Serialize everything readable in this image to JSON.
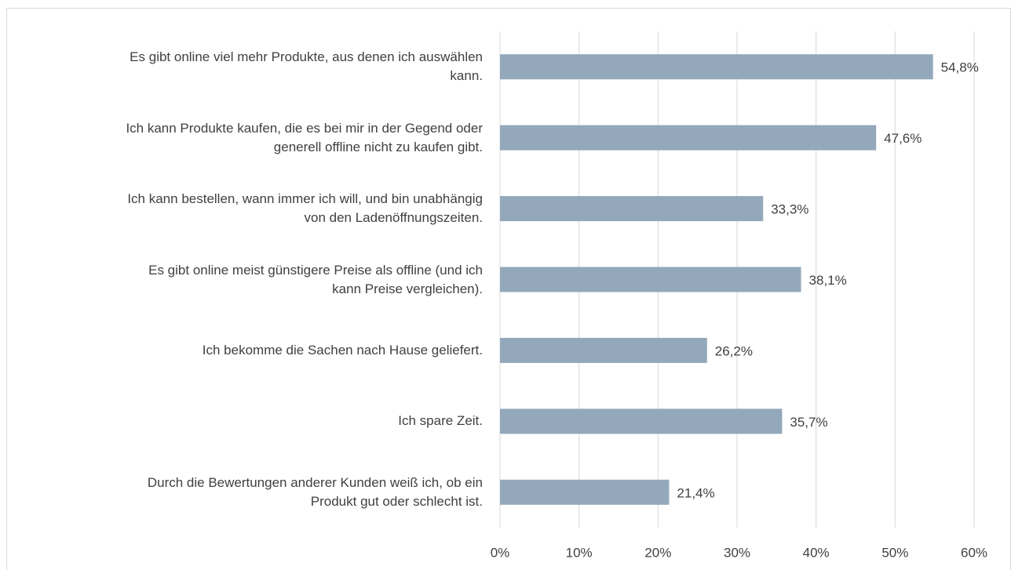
{
  "chart_data": {
    "type": "bar",
    "orientation": "horizontal",
    "categories": [
      "Es gibt online viel mehr Produkte, aus denen ich auswählen\nkann.",
      "Ich kann Produkte kaufen, die es bei mir in der Gegend oder\ngenerell offline nicht zu kaufen gibt.",
      "Ich kann bestellen, wann immer ich will, und bin unabhängig\nvon den Ladenöffnungszeiten.",
      "Es gibt online meist günstigere Preise als offline (und ich\nkann Preise vergleichen).",
      "Ich bekomme die Sachen nach Hause geliefert.",
      "Ich spare Zeit.",
      "Durch die Bewertungen anderer Kunden weiß ich, ob ein\nProdukt gut oder schlecht ist."
    ],
    "values": [
      54.8,
      47.6,
      33.3,
      38.1,
      26.2,
      35.7,
      21.4
    ],
    "value_labels": [
      "54,8%",
      "47,6%",
      "33,3%",
      "38,1%",
      "26,2%",
      "35,7%",
      "21,4%"
    ],
    "color": "#93a8bb",
    "xlim": [
      0,
      60
    ],
    "xticks": [
      {
        "value": 0,
        "label": "0%"
      },
      {
        "value": 10,
        "label": "10%"
      },
      {
        "value": 20,
        "label": "20%"
      },
      {
        "value": 30,
        "label": "30%"
      },
      {
        "value": 40,
        "label": "40%"
      },
      {
        "value": 50,
        "label": "50%"
      },
      {
        "value": 60,
        "label": "60%"
      }
    ],
    "grid": true
  }
}
